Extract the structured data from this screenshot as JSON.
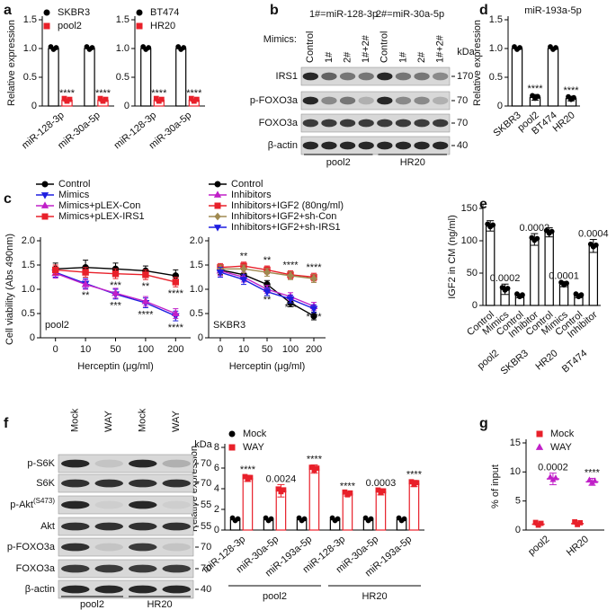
{
  "panel_labels": [
    "a",
    "b",
    "c",
    "d",
    "e",
    "f",
    "g"
  ],
  "blots": [
    {
      "headers": [
        "1#=miR-128-3p",
        "2#=miR-30a-5p"
      ],
      "mimics_label": "Mimics:",
      "lanes": [
        "Control",
        "1#",
        "2#",
        "1#+2#",
        "Control",
        "1#",
        "2#",
        "1#+2#"
      ],
      "rows": [
        "IRS1",
        "p-FOXO3a",
        "FOXO3a",
        "β-actin"
      ],
      "kda": "kDa",
      "markers": [
        "170",
        "70",
        "70",
        "40"
      ],
      "groups": [
        "pool2",
        "HR20"
      ]
    },
    {
      "lanes": [
        "Mock",
        "WAY",
        "Mock",
        "WAY"
      ],
      "rows": [
        "p-S6K",
        "S6K",
        {
          "label": "p-Akt",
          "sup": "(S473)"
        },
        "Akt",
        "p-FOXO3a",
        "FOXO3a",
        "β-actin"
      ],
      "kda": "kDa",
      "markers": [
        "70",
        "70",
        "55",
        "55",
        "70",
        "70",
        "40"
      ],
      "groups": [
        "pool2",
        "HR20"
      ]
    }
  ],
  "chart_data": [
    {
      "type": "bar",
      "ylabel": "Relative expression",
      "categories": [
        "miR-128-3p",
        "miR-30a-5p"
      ],
      "series": [
        {
          "name": "SKBR3",
          "color": "#000000",
          "marker": "circle",
          "values": [
            1,
            1
          ],
          "errors": [
            0,
            0
          ]
        },
        {
          "name": "pool2",
          "color": "#e8202a",
          "marker": "square",
          "values": [
            0.1,
            0.1
          ],
          "errors": [
            0.02,
            0.02
          ],
          "annotations": [
            "****",
            "****"
          ]
        }
      ],
      "ylim": [
        0,
        1.5
      ],
      "yticks": [
        0,
        0.5,
        {
          "value": 1,
          "label": "1.0"
        },
        1.5
      ]
    },
    {
      "type": "bar",
      "categories": [
        "miR-128-3p",
        "miR-30a-5p"
      ],
      "series": [
        {
          "name": "BT474",
          "color": "#000000",
          "marker": "circle",
          "values": [
            1,
            1
          ],
          "errors": [
            0,
            0
          ]
        },
        {
          "name": "HR20",
          "color": "#e8202a",
          "marker": "square",
          "values": [
            0.1,
            0.1
          ],
          "errors": [
            0.02,
            0.02
          ],
          "annotations": [
            "****",
            "****"
          ]
        }
      ],
      "ylim": [
        0,
        1.5
      ],
      "yticks": [
        0,
        0.5,
        {
          "value": 1,
          "label": "1.0"
        },
        1.5
      ]
    },
    {
      "type": "bar",
      "title": "miR-193a-5p",
      "ylabel": "Relative expression",
      "categories": [
        "SKBR3",
        "pool2",
        "BT474",
        "HR20"
      ],
      "values": [
        1,
        0.15,
        1,
        0.13
      ],
      "errors": [
        0,
        0.05,
        0,
        0.04
      ],
      "annotations": [
        null,
        "****",
        null,
        "****"
      ],
      "color": "#000000",
      "marker": "circle",
      "ylim": [
        0,
        1.5
      ],
      "yticks": [
        0,
        0.5,
        {
          "value": 1,
          "label": "1.0"
        },
        1.5
      ]
    },
    {
      "type": "line",
      "ylabel": "Cell viability (Abs 490nm)",
      "xlabel": "Herceptin (μg/ml)",
      "text": "pool2",
      "categories": [
        "0",
        "10",
        "50",
        "100",
        "200"
      ],
      "series": [
        {
          "name": "Control",
          "color": "#000000",
          "marker": "circle",
          "values": [
            1.42,
            1.45,
            1.42,
            1.38,
            1.28
          ],
          "errors": [
            0.12,
            0.15,
            0.12,
            0.1,
            0.12
          ]
        },
        {
          "name": "Mimics",
          "color": "#1f1fe0",
          "marker": "triangle-down",
          "values": [
            1.35,
            1.12,
            0.9,
            0.72,
            0.45
          ],
          "errors": [
            0.1,
            0.1,
            0.1,
            0.1,
            0.1
          ],
          "annotations": [
            null,
            "**",
            "***",
            "****",
            "****"
          ]
        },
        {
          "name": "Mimics+pLEX-Con",
          "color": "#c020c8",
          "marker": "triangle",
          "values": [
            1.33,
            1.1,
            0.92,
            0.75,
            0.5
          ],
          "errors": [
            0.1,
            0.1,
            0.1,
            0.1,
            0.1
          ]
        },
        {
          "name": "Mimics+pLEX-IRS1",
          "color": "#e8202a",
          "marker": "square",
          "values": [
            1.4,
            1.35,
            1.32,
            1.3,
            1.15
          ],
          "errors": [
            0.1,
            0.1,
            0.1,
            0.1,
            0.1
          ],
          "annotations": [
            null,
            null,
            "***",
            "**",
            "****"
          ]
        }
      ],
      "ylim": [
        0,
        2
      ],
      "yticks": [
        0,
        0.5,
        {
          "value": 1,
          "label": "1.0"
        },
        1.5,
        {
          "value": 2,
          "label": "2.0"
        }
      ]
    },
    {
      "type": "line",
      "xlabel": "Herceptin (μg/ml)",
      "text": "SKBR3",
      "categories": [
        "0",
        "10",
        "50",
        "100",
        "200"
      ],
      "series": [
        {
          "name": "Control",
          "color": "#000000",
          "marker": "circle",
          "values": [
            1.4,
            1.3,
            1.1,
            0.72,
            0.45
          ],
          "errors": [
            0.1,
            0.1,
            0.08,
            0.08,
            0.08
          ]
        },
        {
          "name": "Inhibitors",
          "color": "#c020c8",
          "marker": "triangle",
          "values": [
            1.38,
            1.25,
            1.0,
            0.85,
            0.65
          ],
          "errors": [
            0.1,
            0.1,
            0.08,
            0.08,
            0.08
          ],
          "annotations": [
            null,
            null,
            "**",
            "***",
            "****"
          ]
        },
        {
          "name": "Inhibitors+IGF2 (80ng/ml)",
          "color": "#e8202a",
          "marker": "square",
          "values": [
            1.45,
            1.48,
            1.4,
            1.3,
            1.25
          ],
          "errors": [
            0.08,
            0.08,
            0.08,
            0.08,
            0.08
          ],
          "annotations": [
            null,
            "**",
            "**",
            "****",
            "****"
          ]
        },
        {
          "name": "Inhibitors+IGF2+sh-Con",
          "color": "#a08a50",
          "marker": "diamond",
          "values": [
            1.42,
            1.42,
            1.35,
            1.28,
            1.22
          ],
          "errors": [
            0.08,
            0.08,
            0.08,
            0.08,
            0.08
          ]
        },
        {
          "name": "Inhibitors+IGF2+sh-IRS1",
          "color": "#1f1fe0",
          "marker": "triangle-down",
          "values": [
            1.35,
            1.2,
            0.95,
            0.8,
            0.6
          ],
          "errors": [
            0.1,
            0.1,
            0.08,
            0.08,
            0.08
          ]
        }
      ],
      "ylim": [
        0,
        2
      ],
      "yticks": [
        0,
        0.5,
        {
          "value": 1,
          "label": "1.0"
        },
        1.5,
        {
          "value": 2,
          "label": "2.0"
        }
      ]
    },
    {
      "type": "bar",
      "ylabel": "IGF2 in CM (ng/ml)",
      "categories": [
        "Control",
        "Mimics",
        "Control",
        "Inhibitor",
        "Control",
        "Mimics",
        "Control",
        "Inhibitor"
      ],
      "values": [
        123,
        25,
        15,
        102,
        113,
        33,
        15,
        92
      ],
      "errors": [
        8,
        8,
        3,
        9,
        7,
        4,
        3,
        10
      ],
      "annotations": [
        null,
        "0.0002",
        null,
        "0.0002",
        null,
        "0.0001",
        null,
        "0.0004"
      ],
      "color": "#000000",
      "marker": "circle",
      "groups": [
        "pool2",
        "SKBR3",
        "HR20",
        "BT474"
      ],
      "ylim": [
        0,
        150
      ],
      "yticks": [
        0,
        50,
        100,
        150
      ]
    },
    {
      "type": "bar",
      "ylabel": "Relative expression",
      "categories": [
        "miR-128-3p",
        "miR-30a-5p",
        "miR-193a-5p",
        "miR-128-3p",
        "miR-30a-5p",
        "miR-193a-5p"
      ],
      "series": [
        {
          "name": "Mock",
          "color": "#000000",
          "marker": "circle",
          "values": [
            1,
            1,
            1,
            1,
            1,
            1
          ],
          "errors": [
            0,
            0,
            0,
            0,
            0,
            0
          ]
        },
        {
          "name": "WAY",
          "color": "#e8202a",
          "marker": "square",
          "values": [
            5,
            3.8,
            5.9,
            3.5,
            3.7,
            4.5
          ],
          "errors": [
            0.3,
            0.6,
            0.4,
            0.2,
            0.3,
            0.3
          ],
          "annotations": [
            "****",
            "0.0024",
            "****",
            "****",
            "0.0003",
            "****"
          ]
        }
      ],
      "groups": [
        "pool2",
        "HR20"
      ],
      "ylim": [
        0,
        8
      ],
      "yticks": [
        0,
        2,
        4,
        6,
        8
      ]
    },
    {
      "type": "dot",
      "ylabel": "% of input",
      "categories": [
        "pool2",
        "HR20"
      ],
      "series": [
        {
          "name": "Mock",
          "color": "#e8202a",
          "marker": "square",
          "values": [
            1,
            1.1
          ],
          "errors": [
            0.15,
            0.1
          ]
        },
        {
          "name": "WAY",
          "color": "#c020c8",
          "marker": "triangle",
          "values": [
            8.8,
            8.3
          ],
          "errors": [
            1,
            0.6
          ],
          "annotations": [
            "0.0002",
            "****"
          ]
        }
      ],
      "ylim": [
        0,
        15
      ],
      "yticks": [
        0,
        5,
        10,
        15
      ]
    }
  ]
}
